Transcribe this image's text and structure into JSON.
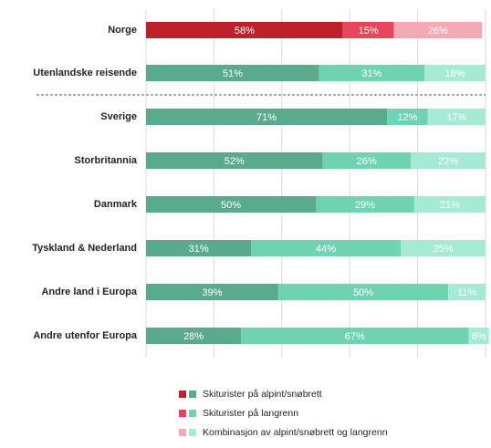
{
  "chart_data": {
    "type": "stacked-bar-horizontal",
    "categories": [
      "Norge",
      "Utenlandske reisende",
      "Sverige",
      "Storbritannia",
      "Danmark",
      "Tyskland & Nederland",
      "Andre land i Europa",
      "Andre utenfor Europa"
    ],
    "series": [
      {
        "name": "Skiturister på alpint/snøbrett",
        "color": "#5aab8c",
        "highlight_color": "#c0202e",
        "values": [
          58,
          51,
          71,
          52,
          50,
          31,
          39,
          28
        ],
        "value_labels": [
          "58%",
          "51%",
          "71%",
          "52%",
          "50%",
          "31%",
          "39%",
          "28%"
        ]
      },
      {
        "name": "Skiturister på langrenn",
        "color": "#6fd3b1",
        "highlight_color": "#e8455a",
        "values": [
          15,
          31,
          12,
          26,
          29,
          44,
          50,
          67
        ],
        "value_labels": [
          "15%",
          "31%",
          "12%",
          "26%",
          "29%",
          "44%",
          "50%",
          "67%"
        ]
      },
      {
        "name": "Kombinasjon av alpint/snøbrett og langrenn",
        "color": "#a5ebd3",
        "highlight_color": "#f4aab5",
        "values": [
          26,
          18,
          17,
          22,
          21,
          25,
          11,
          6
        ],
        "value_labels": [
          "26%",
          "18%",
          "17%",
          "22%",
          "21%",
          "25%",
          "11%",
          "6%"
        ]
      }
    ],
    "highlight_category": 0,
    "separator_after": 1,
    "xlim": [
      0,
      100
    ],
    "xticks": [
      0,
      20,
      40,
      60,
      80,
      100
    ],
    "grid": true
  }
}
